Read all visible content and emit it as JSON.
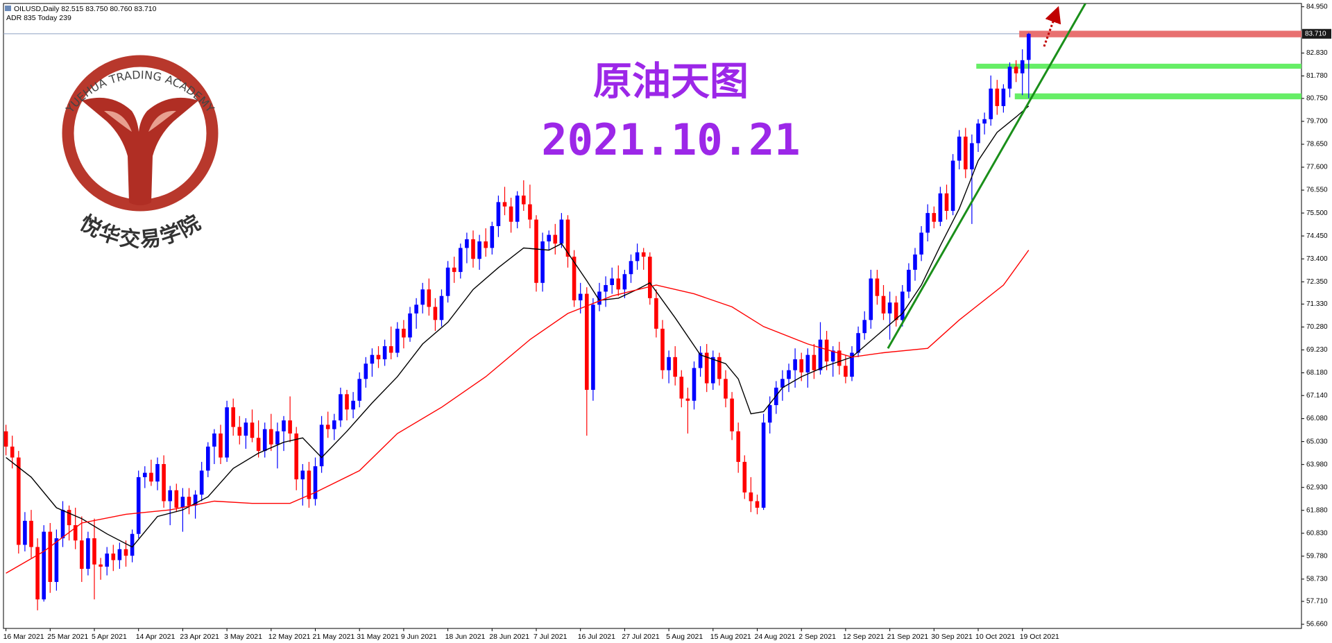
{
  "header": {
    "info": "OILUSD,Daily  82.515 83.750 80.760 83.710",
    "adr": "ADR 835  Today 239"
  },
  "logo": {
    "arc_text": "YUEHUA TRADING ACADEMY",
    "name": "悦华交易学院"
  },
  "chart_data": {
    "type": "candlestick",
    "title": "原油天图",
    "subtitle": "2021.10.21",
    "categories": [
      "16 Mar 2021",
      null,
      null,
      null,
      null,
      null,
      null,
      "25 Mar 2021",
      null,
      null,
      null,
      null,
      null,
      null,
      "5 Apr 2021",
      null,
      null,
      null,
      null,
      null,
      null,
      "14 Apr 2021",
      null,
      null,
      null,
      null,
      null,
      null,
      "23 Apr 2021",
      null,
      null,
      null,
      null,
      null,
      null,
      "3 May 2021",
      null,
      null,
      null,
      null,
      null,
      null,
      "12 May 2021",
      null,
      null,
      null,
      null,
      null,
      null,
      "21 May 2021",
      null,
      null,
      null,
      null,
      null,
      null,
      "31 May 2021",
      null,
      null,
      null,
      null,
      null,
      null,
      "9 Jun 2021",
      null,
      null,
      null,
      null,
      null,
      null,
      "18 Jun 2021",
      null,
      null,
      null,
      null,
      null,
      null,
      "28 Jun 2021",
      null,
      null,
      null,
      null,
      null,
      null,
      "7 Jul 2021",
      null,
      null,
      null,
      null,
      null,
      null,
      "16 Jul 2021",
      null,
      null,
      null,
      null,
      null,
      null,
      "27 Jul 2021",
      null,
      null,
      null,
      null,
      null,
      null,
      "5 Aug 2021",
      null,
      null,
      null,
      null,
      null,
      null,
      "15 Aug 2021",
      null,
      null,
      null,
      null,
      null,
      null,
      "24 Aug 2021",
      null,
      null,
      null,
      null,
      null,
      null,
      "2 Sep 2021",
      null,
      null,
      null,
      null,
      null,
      null,
      "12 Sep 2021",
      null,
      null,
      null,
      null,
      null,
      null,
      "21 Sep 2021",
      null,
      null,
      null,
      null,
      null,
      null,
      "30 Sep 2021",
      null,
      null,
      null,
      null,
      null,
      null,
      "10 Oct 2021",
      null,
      null,
      null,
      null,
      null,
      null,
      "19 Oct 2021",
      null
    ],
    "ohlc": [
      [
        65.5,
        65.8,
        64.4,
        64.8
      ],
      [
        64.8,
        65.3,
        63.8,
        64.3
      ],
      [
        64.3,
        64.6,
        59.9,
        60.3
      ],
      [
        60.3,
        61.8,
        60.0,
        61.4
      ],
      [
        61.4,
        61.9,
        59.7,
        60.2
      ],
      [
        60.2,
        60.6,
        57.3,
        57.8
      ],
      [
        57.8,
        61.2,
        57.7,
        60.9
      ],
      [
        60.9,
        61.3,
        58.1,
        58.6
      ],
      [
        58.6,
        61.0,
        58.2,
        60.6
      ],
      [
        60.6,
        62.3,
        60.2,
        61.9
      ],
      [
        61.9,
        62.1,
        60.5,
        61.2
      ],
      [
        61.2,
        62.0,
        60.1,
        60.5
      ],
      [
        60.5,
        61.6,
        58.6,
        59.2
      ],
      [
        59.2,
        60.9,
        58.9,
        60.6
      ],
      [
        60.6,
        61.5,
        57.8,
        59.4
      ],
      [
        59.4,
        59.7,
        58.7,
        59.3
      ],
      [
        59.3,
        60.2,
        58.9,
        59.9
      ],
      [
        59.9,
        60.3,
        59.1,
        59.6
      ],
      [
        59.6,
        60.4,
        59.2,
        60.1
      ],
      [
        60.1,
        60.5,
        59.3,
        59.8
      ],
      [
        59.8,
        61.0,
        59.5,
        60.8
      ],
      [
        60.8,
        63.7,
        60.6,
        63.4
      ],
      [
        63.4,
        63.9,
        62.9,
        63.6
      ],
      [
        63.6,
        64.2,
        63.0,
        63.2
      ],
      [
        63.2,
        64.3,
        62.8,
        64.0
      ],
      [
        64.0,
        64.4,
        62.0,
        62.3
      ],
      [
        62.3,
        63.0,
        61.2,
        62.8
      ],
      [
        62.8,
        63.1,
        61.8,
        62.0
      ],
      [
        62.0,
        62.9,
        60.9,
        62.5
      ],
      [
        62.5,
        62.9,
        61.7,
        62.1
      ],
      [
        62.1,
        62.8,
        61.5,
        62.6
      ],
      [
        62.6,
        64.1,
        62.3,
        63.7
      ],
      [
        63.7,
        65.0,
        63.4,
        64.8
      ],
      [
        64.8,
        65.6,
        64.0,
        65.4
      ],
      [
        65.4,
        65.8,
        64.0,
        64.3
      ],
      [
        64.3,
        66.9,
        64.1,
        66.6
      ],
      [
        66.6,
        67.0,
        65.3,
        65.7
      ],
      [
        65.7,
        66.2,
        64.9,
        65.3
      ],
      [
        65.3,
        66.1,
        64.7,
        65.9
      ],
      [
        65.9,
        66.5,
        65.0,
        65.2
      ],
      [
        65.2,
        66.0,
        64.3,
        64.6
      ],
      [
        64.6,
        65.9,
        64.3,
        65.6
      ],
      [
        65.6,
        66.3,
        64.6,
        64.9
      ],
      [
        64.9,
        65.9,
        63.8,
        65.5
      ],
      [
        65.5,
        66.2,
        64.6,
        66.0
      ],
      [
        66.0,
        67.1,
        65.0,
        65.4
      ],
      [
        65.4,
        65.7,
        62.8,
        63.3
      ],
      [
        63.3,
        64.0,
        62.1,
        63.7
      ],
      [
        63.7,
        64.1,
        62.0,
        62.4
      ],
      [
        62.4,
        64.3,
        62.1,
        63.9
      ],
      [
        63.9,
        66.2,
        63.6,
        65.8
      ],
      [
        65.8,
        66.4,
        65.2,
        65.6
      ],
      [
        65.6,
        66.3,
        65.1,
        66.0
      ],
      [
        66.0,
        67.5,
        65.7,
        67.2
      ],
      [
        67.2,
        67.4,
        66.0,
        66.5
      ],
      [
        66.5,
        67.3,
        66.1,
        66.9
      ],
      [
        66.9,
        68.2,
        66.6,
        67.9
      ],
      [
        67.9,
        68.9,
        67.5,
        68.6
      ],
      [
        68.6,
        69.3,
        68.0,
        69.0
      ],
      [
        69.0,
        69.4,
        68.4,
        68.8
      ],
      [
        68.8,
        69.7,
        68.5,
        69.4
      ],
      [
        69.4,
        70.3,
        68.8,
        69.1
      ],
      [
        69.1,
        70.5,
        68.9,
        70.2
      ],
      [
        70.2,
        70.6,
        69.3,
        69.8
      ],
      [
        69.8,
        71.2,
        69.6,
        70.9
      ],
      [
        70.9,
        71.6,
        70.2,
        71.3
      ],
      [
        71.3,
        72.3,
        70.9,
        72.0
      ],
      [
        72.0,
        72.5,
        70.8,
        71.2
      ],
      [
        71.2,
        71.6,
        70.1,
        70.6
      ],
      [
        70.6,
        72.0,
        70.3,
        71.7
      ],
      [
        71.7,
        73.3,
        71.4,
        73.0
      ],
      [
        73.0,
        73.5,
        72.3,
        72.8
      ],
      [
        72.8,
        74.1,
        72.5,
        73.9
      ],
      [
        73.9,
        74.6,
        73.2,
        74.3
      ],
      [
        74.3,
        74.7,
        73.0,
        73.4
      ],
      [
        73.4,
        74.5,
        72.9,
        74.2
      ],
      [
        74.2,
        74.8,
        73.5,
        73.9
      ],
      [
        73.9,
        75.1,
        73.6,
        74.9
      ],
      [
        74.9,
        76.3,
        74.4,
        76.0
      ],
      [
        76.0,
        76.7,
        75.4,
        75.8
      ],
      [
        75.8,
        76.2,
        74.6,
        75.1
      ],
      [
        75.1,
        76.5,
        74.8,
        76.3
      ],
      [
        76.3,
        77.0,
        75.6,
        75.9
      ],
      [
        75.9,
        76.8,
        74.8,
        75.2
      ],
      [
        75.2,
        75.4,
        71.9,
        72.3
      ],
      [
        72.3,
        74.6,
        71.9,
        74.2
      ],
      [
        74.2,
        74.7,
        73.8,
        74.5
      ],
      [
        74.5,
        75.0,
        73.6,
        74.1
      ],
      [
        74.1,
        75.5,
        73.9,
        75.2
      ],
      [
        75.2,
        75.4,
        73.0,
        73.5
      ],
      [
        73.5,
        73.8,
        71.2,
        71.5
      ],
      [
        71.5,
        72.3,
        70.9,
        71.8
      ],
      [
        71.8,
        72.1,
        65.3,
        67.4
      ],
      [
        67.4,
        71.6,
        66.9,
        71.3
      ],
      [
        71.3,
        72.3,
        71.0,
        71.9
      ],
      [
        71.9,
        72.6,
        71.2,
        72.2
      ],
      [
        72.2,
        73.0,
        71.8,
        72.5
      ],
      [
        72.5,
        73.1,
        71.7,
        72.0
      ],
      [
        72.0,
        72.9,
        71.6,
        72.7
      ],
      [
        72.7,
        73.6,
        72.3,
        73.3
      ],
      [
        73.3,
        74.1,
        72.9,
        73.7
      ],
      [
        73.7,
        73.9,
        72.9,
        73.5
      ],
      [
        73.5,
        73.7,
        71.3,
        71.6
      ],
      [
        71.6,
        72.0,
        69.8,
        70.2
      ],
      [
        70.2,
        70.6,
        67.9,
        68.3
      ],
      [
        68.3,
        69.2,
        67.7,
        68.9
      ],
      [
        68.9,
        69.4,
        67.6,
        68.0
      ],
      [
        68.0,
        68.3,
        66.6,
        67.0
      ],
      [
        67.0,
        67.5,
        65.4,
        66.9
      ],
      [
        66.9,
        68.7,
        66.5,
        68.4
      ],
      [
        68.4,
        69.4,
        68.0,
        69.1
      ],
      [
        69.1,
        69.5,
        67.3,
        67.7
      ],
      [
        67.7,
        69.2,
        67.4,
        68.9
      ],
      [
        68.9,
        69.1,
        67.6,
        67.9
      ],
      [
        67.9,
        68.3,
        66.6,
        67.0
      ],
      [
        67.0,
        67.3,
        65.1,
        65.5
      ],
      [
        65.5,
        65.9,
        63.6,
        64.1
      ],
      [
        64.1,
        64.4,
        62.4,
        62.7
      ],
      [
        62.7,
        63.4,
        61.8,
        62.3
      ],
      [
        62.3,
        62.6,
        61.7,
        62.0
      ],
      [
        62.0,
        66.3,
        61.9,
        65.9
      ],
      [
        65.9,
        67.1,
        65.4,
        66.7
      ],
      [
        66.7,
        67.8,
        66.3,
        67.5
      ],
      [
        67.5,
        68.3,
        66.9,
        67.9
      ],
      [
        67.9,
        68.6,
        67.3,
        68.3
      ],
      [
        68.3,
        69.3,
        67.5,
        68.8
      ],
      [
        68.8,
        69.1,
        67.8,
        68.2
      ],
      [
        68.2,
        69.3,
        67.5,
        69.0
      ],
      [
        69.0,
        69.5,
        67.9,
        68.3
      ],
      [
        68.3,
        70.5,
        68.1,
        69.7
      ],
      [
        69.7,
        70.1,
        68.3,
        68.7
      ],
      [
        68.7,
        69.4,
        68.0,
        69.2
      ],
      [
        69.2,
        69.6,
        68.1,
        68.5
      ],
      [
        68.5,
        69.0,
        67.7,
        68.0
      ],
      [
        68.0,
        69.4,
        67.8,
        69.1
      ],
      [
        69.1,
        70.3,
        68.9,
        70.0
      ],
      [
        70.0,
        71.0,
        69.7,
        70.6
      ],
      [
        70.6,
        72.9,
        70.2,
        72.5
      ],
      [
        72.5,
        72.9,
        71.3,
        71.7
      ],
      [
        71.7,
        72.2,
        70.6,
        70.9
      ],
      [
        70.9,
        71.9,
        69.7,
        71.4
      ],
      [
        71.4,
        71.7,
        70.3,
        70.6
      ],
      [
        70.6,
        72.2,
        70.3,
        71.9
      ],
      [
        71.9,
        73.2,
        71.6,
        72.9
      ],
      [
        72.9,
        73.9,
        72.4,
        73.6
      ],
      [
        73.6,
        74.9,
        73.3,
        74.6
      ],
      [
        74.6,
        75.9,
        74.2,
        75.5
      ],
      [
        75.5,
        75.8,
        74.8,
        75.1
      ],
      [
        75.1,
        76.7,
        74.9,
        76.4
      ],
      [
        76.4,
        76.8,
        75.2,
        75.6
      ],
      [
        75.6,
        78.2,
        75.4,
        77.9
      ],
      [
        77.9,
        79.3,
        77.5,
        79.0
      ],
      [
        79.0,
        79.4,
        77.1,
        77.5
      ],
      [
        77.5,
        79.1,
        75.0,
        78.7
      ],
      [
        78.7,
        79.8,
        78.3,
        79.6
      ],
      [
        79.6,
        80.1,
        79.1,
        79.8
      ],
      [
        79.8,
        81.8,
        79.5,
        81.2
      ],
      [
        81.2,
        81.6,
        80.0,
        80.4
      ],
      [
        80.4,
        81.4,
        80.1,
        81.2
      ],
      [
        81.2,
        82.4,
        80.8,
        82.2
      ],
      [
        82.2,
        82.5,
        81.5,
        81.9
      ],
      [
        81.9,
        83.0,
        80.9,
        82.5
      ],
      [
        82.515,
        83.75,
        80.76,
        83.71
      ]
    ],
    "up_color": "#0000ff",
    "down_color": "#ff0000",
    "ylim": [
      56.47,
      85.1
    ],
    "yticks": [
      {
        "value": 84.95,
        "label": "84.950"
      },
      {
        "value": 82.83,
        "label": "82.830"
      },
      {
        "value": 81.78,
        "label": "81.780"
      },
      {
        "value": 80.75,
        "label": "80.750"
      },
      {
        "value": 79.7,
        "label": "79.700"
      },
      {
        "value": 78.65,
        "label": "78.650"
      },
      {
        "value": 77.6,
        "label": "77.600"
      },
      {
        "value": 76.55,
        "label": "76.550"
      },
      {
        "value": 75.5,
        "label": "75.500"
      },
      {
        "value": 74.45,
        "label": "74.450"
      },
      {
        "value": 73.4,
        "label": "73.400"
      },
      {
        "value": 72.35,
        "label": "72.350"
      },
      {
        "value": 71.33,
        "label": "71.330"
      },
      {
        "value": 70.28,
        "label": "70.280"
      },
      {
        "value": 69.23,
        "label": "69.230"
      },
      {
        "value": 68.18,
        "label": "68.180"
      },
      {
        "value": 67.14,
        "label": "67.140"
      },
      {
        "value": 66.08,
        "label": "66.080"
      },
      {
        "value": 65.03,
        "label": "65.030"
      },
      {
        "value": 63.98,
        "label": "63.980"
      },
      {
        "value": 62.93,
        "label": "62.930"
      },
      {
        "value": 61.88,
        "label": "61.880"
      },
      {
        "value": 60.83,
        "label": "60.830"
      },
      {
        "value": 59.78,
        "label": "59.780"
      },
      {
        "value": 58.73,
        "label": "58.730"
      },
      {
        "value": 57.71,
        "label": "57.710"
      },
      {
        "value": 56.66,
        "label": "56.660"
      }
    ],
    "current_price": {
      "value": 83.71,
      "label": "83.710",
      "color": "#8fa3c4"
    },
    "overlays": [
      {
        "color": "#000000",
        "x": [
          0,
          4,
          8,
          12,
          16,
          20,
          24,
          28,
          32,
          36,
          40,
          44,
          47,
          50,
          54,
          58,
          62,
          66,
          70,
          74,
          78,
          82,
          86,
          88,
          92,
          94,
          97,
          100,
          102,
          106,
          110,
          114,
          116,
          118,
          120,
          123,
          126,
          130,
          134,
          138,
          142,
          145,
          148,
          151,
          154,
          157,
          160,
          162
        ],
        "values": [
          64.3,
          63.4,
          62.0,
          61.5,
          60.8,
          60.2,
          61.6,
          61.9,
          62.5,
          63.8,
          64.5,
          65.0,
          65.2,
          64.3,
          65.5,
          66.8,
          68.0,
          69.5,
          70.5,
          72.0,
          73.0,
          73.9,
          73.8,
          74.1,
          72.4,
          71.5,
          71.6,
          72.0,
          72.3,
          70.7,
          69.0,
          68.6,
          67.9,
          66.3,
          66.4,
          67.5,
          68.0,
          68.5,
          68.9,
          69.9,
          70.9,
          72.2,
          74.0,
          75.7,
          77.9,
          79.2,
          79.9,
          80.4
        ]
      },
      {
        "color": "#ff0000",
        "x": [
          0,
          6,
          12,
          19,
          26,
          33,
          39,
          45,
          49,
          56,
          62,
          69,
          76,
          83,
          89,
          96,
          103,
          109,
          115,
          120,
          127,
          134,
          139,
          146,
          151,
          158,
          162
        ],
        "values": [
          59.0,
          60.0,
          61.3,
          61.7,
          61.9,
          62.3,
          62.2,
          62.2,
          62.7,
          63.7,
          65.4,
          66.6,
          68.0,
          69.7,
          70.9,
          71.7,
          72.2,
          71.8,
          71.2,
          70.3,
          69.5,
          68.9,
          69.1,
          69.3,
          70.6,
          72.2,
          73.8
        ]
      }
    ],
    "trendline": {
      "color": "#1a8f1a",
      "x": [
        139.7,
        171.3
      ],
      "values": [
        69.3,
        85.26
      ]
    },
    "zones": [
      {
        "color": "#e87070",
        "x_start": 160.5,
        "range": [
          83.55,
          83.85
        ]
      },
      {
        "color": "#66ee66",
        "x_start": 153.7,
        "range": [
          82.11,
          82.34
        ]
      },
      {
        "color": "#66ee66",
        "x_start": 159.8,
        "range": [
          80.71,
          80.98
        ]
      }
    ]
  }
}
